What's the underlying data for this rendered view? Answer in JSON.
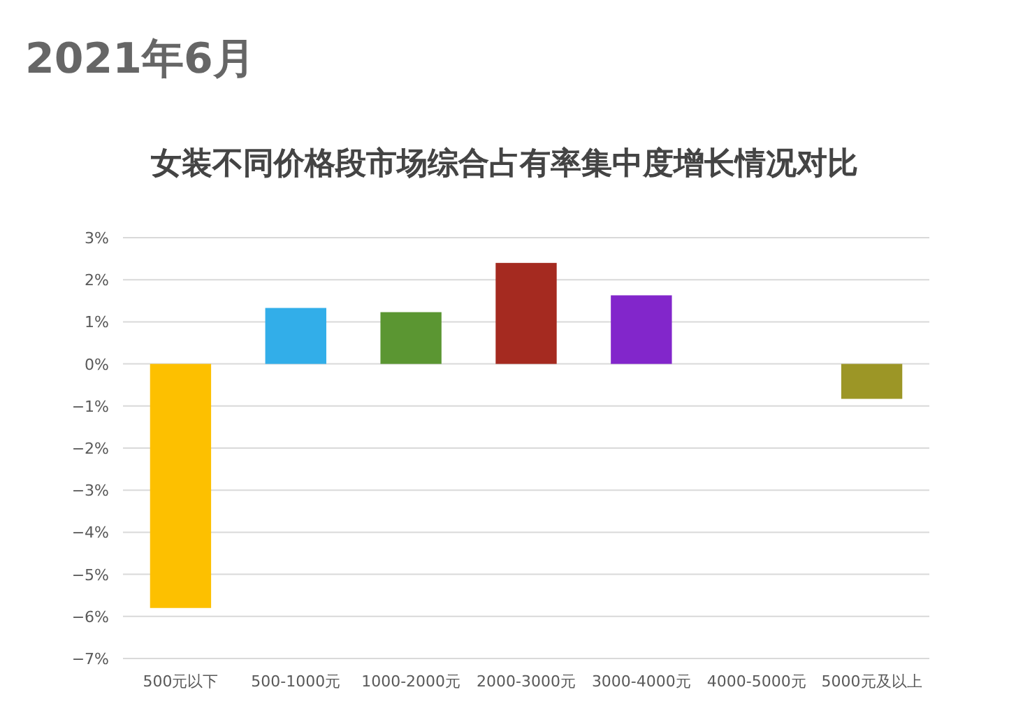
{
  "chart_data": {
    "type": "bar",
    "title": "女装不同价格段市场综合占有率集中度增长情况对比",
    "subtitle": "2021年6月",
    "categories": [
      "500元以下",
      "500-1000元",
      "1000-2000元",
      "2000-3000元",
      "3000-4000元",
      "4000-5000元",
      "5000元及以上"
    ],
    "values": [
      -5.8,
      1.33,
      1.23,
      2.4,
      1.63,
      null,
      -0.83
    ],
    "colors": [
      "#fdc000",
      "#32aee9",
      "#5b9632",
      "#a52a20",
      "#8226cb",
      null,
      "#9c9626"
    ],
    "ylim": [
      -7,
      3
    ],
    "yticks": [
      {
        "value": -7,
        "label": "−7%"
      },
      {
        "value": -6,
        "label": "−6%"
      },
      {
        "value": -5,
        "label": "−5%"
      },
      {
        "value": -4,
        "label": "−4%"
      },
      {
        "value": -3,
        "label": "−3%"
      },
      {
        "value": -2,
        "label": "−2%"
      },
      {
        "value": -1,
        "label": "−1%"
      },
      {
        "value": 0,
        "label": "0%"
      },
      {
        "value": 1,
        "label": "1%"
      },
      {
        "value": 2,
        "label": "2%"
      },
      {
        "value": 3,
        "label": "3%"
      }
    ],
    "grid": "y"
  }
}
